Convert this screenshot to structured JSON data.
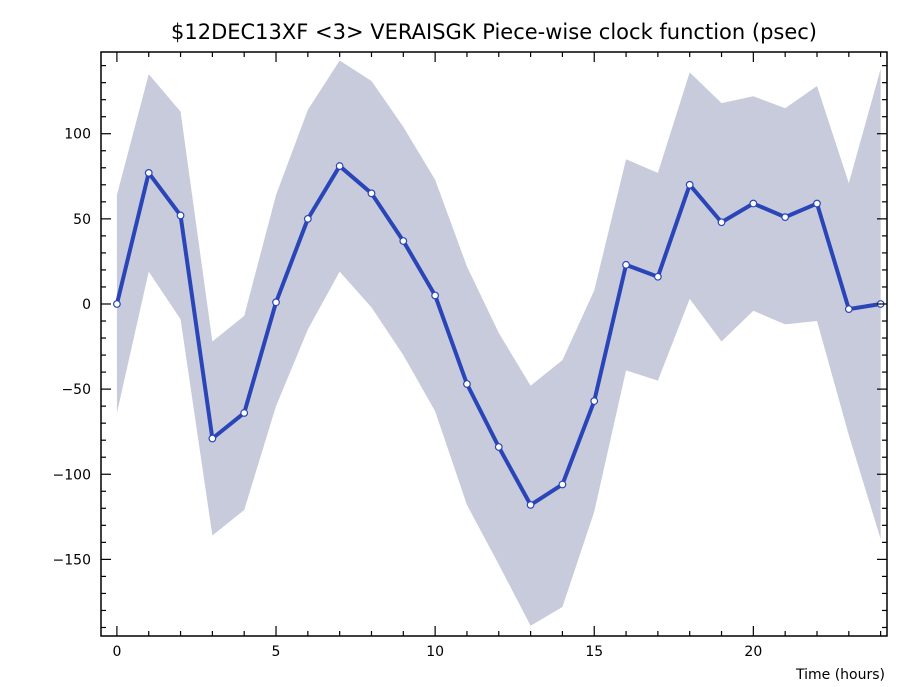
{
  "chart_data": {
    "type": "line",
    "title": "$12DEC13XF <3>  VERAISGK  Piece-wise clock function (psec)",
    "xlabel": "Time (hours)",
    "ylabel": "",
    "xlim": [
      -0.5,
      24.2
    ],
    "ylim": [
      -195,
      148
    ],
    "xticks": [
      0,
      5,
      10,
      15,
      20
    ],
    "yticks": [
      -150,
      -100,
      -50,
      0,
      50,
      100
    ],
    "grid": false,
    "legend": "none",
    "colors": {
      "line": "#2a45b8",
      "band": "#c8cbdb",
      "marker_fill": "#ffffff",
      "axis": "#000000"
    },
    "series": [
      {
        "x": [
          0,
          1,
          2,
          3,
          4,
          5,
          6,
          7,
          8,
          9,
          10,
          11,
          12,
          13,
          14,
          15,
          16,
          17,
          18,
          19,
          20,
          21,
          22,
          23,
          24
        ],
        "values": [
          0,
          77,
          52,
          -79,
          -64,
          1,
          50,
          81,
          65,
          37,
          5,
          -47,
          -84,
          -118,
          -106,
          -57,
          23,
          16,
          70,
          48,
          59,
          51,
          59,
          -3,
          0
        ],
        "upper": [
          64,
          135,
          113,
          -22,
          -7,
          64,
          114,
          143,
          131,
          104,
          73,
          22,
          -17,
          -48,
          -33,
          8,
          85,
          77,
          136,
          118,
          122,
          115,
          128,
          71,
          138
        ],
        "lower": [
          -64,
          19,
          -9,
          -136,
          -121,
          -60,
          -15,
          19,
          -2,
          -30,
          -63,
          -118,
          -153,
          -189,
          -178,
          -122,
          -39,
          -45,
          3,
          -22,
          -4,
          -12,
          -10,
          -77,
          -138
        ]
      }
    ]
  }
}
